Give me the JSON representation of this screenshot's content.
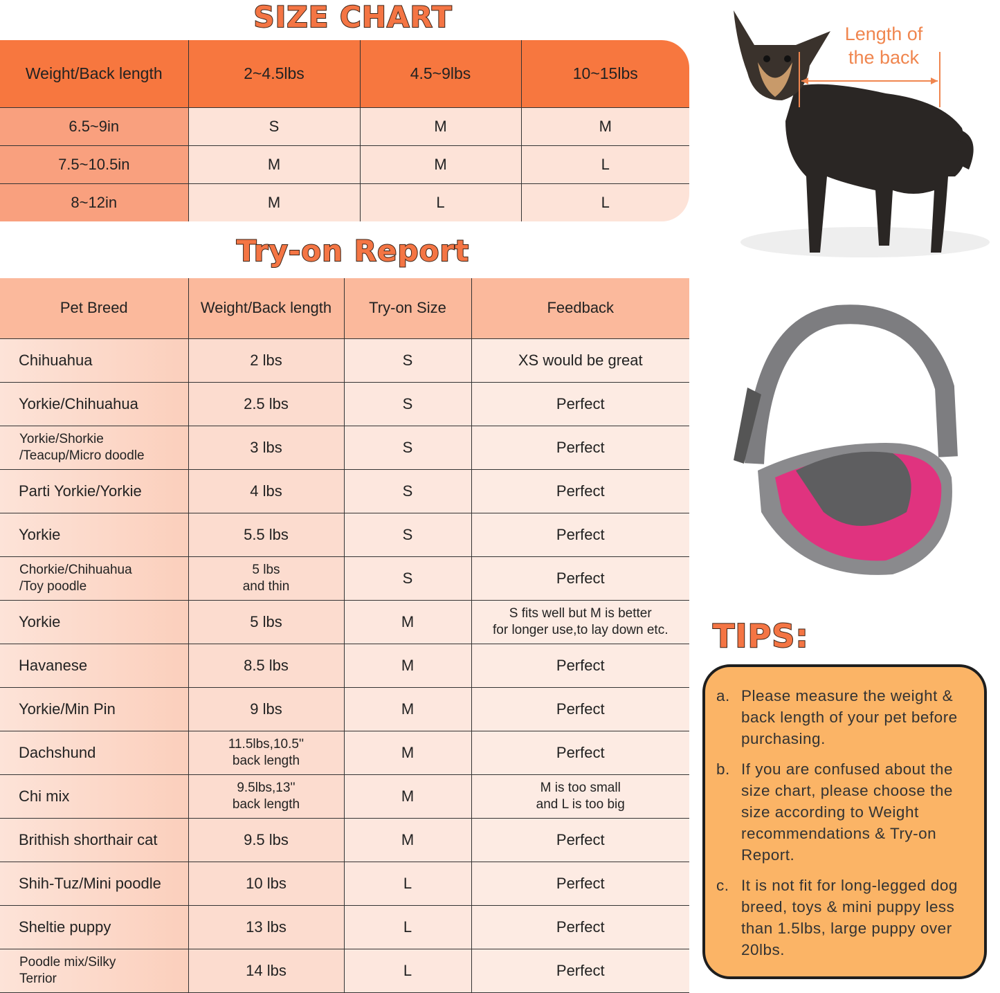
{
  "size_chart": {
    "title": "SIZE CHART",
    "headers": [
      "Weight/Back length",
      "2~4.5lbs",
      "4.5~9lbs",
      "10~15lbs"
    ],
    "rows": [
      [
        "6.5~9in",
        "S",
        "M",
        "M"
      ],
      [
        "7.5~10.5in",
        "M",
        "M",
        "L"
      ],
      [
        "8~12in",
        "M",
        "L",
        "L"
      ]
    ]
  },
  "tryon": {
    "title": "Try-on Report",
    "headers": [
      "Pet Breed",
      "Weight/Back length",
      "Try-on Size",
      "Feedback"
    ],
    "rows": [
      [
        "Chihuahua",
        "2 lbs",
        "S",
        "XS would be great"
      ],
      [
        "Yorkie/Chihuahua",
        "2.5 lbs",
        "S",
        "Perfect"
      ],
      [
        "Yorkie/Shorkie\n/Teacup/Micro doodle",
        "3 lbs",
        "S",
        "Perfect"
      ],
      [
        "Parti Yorkie/Yorkie",
        "4 lbs",
        "S",
        "Perfect"
      ],
      [
        "Yorkie",
        "5.5 lbs",
        "S",
        "Perfect"
      ],
      [
        "Chorkie/Chihuahua\n/Toy poodle",
        "5 lbs\nand thin",
        "S",
        "Perfect"
      ],
      [
        "Yorkie",
        "5 lbs",
        "M",
        "S fits well but M is better\nfor longer use,to lay down etc."
      ],
      [
        "Havanese",
        "8.5 lbs",
        "M",
        "Perfect"
      ],
      [
        "Yorkie/Min Pin",
        "9 lbs",
        "M",
        "Perfect"
      ],
      [
        "Dachshund",
        "11.5lbs,10.5''\nback length",
        "M",
        "Perfect"
      ],
      [
        "Chi mix",
        "9.5lbs,13''\nback length",
        "M",
        "M is too small\nand L is too big"
      ],
      [
        "Brithish shorthair cat",
        "9.5 lbs",
        "M",
        "Perfect"
      ],
      [
        "Shih-Tuz/Mini poodle",
        "10 lbs",
        "L",
        "Perfect"
      ],
      [
        "Sheltie puppy",
        "13 lbs",
        "L",
        "Perfect"
      ],
      [
        "Poodle mix/Silky\n Terrior",
        "14 lbs",
        "L",
        "Perfect"
      ]
    ]
  },
  "dog_annotation": "Length of\nthe back",
  "tips": {
    "title": "TIPS:",
    "items": [
      {
        "letter": "a.",
        "text": "Please measure the weight & back length of your pet before purchasing."
      },
      {
        "letter": "b.",
        "text": "If you are confused about the size chart, please choose the size according to Weight recommendations & Try-on Report."
      },
      {
        "letter": "c.",
        "text": "It is not fit for long-legged dog breed, toys & mini puppy less than 1.5lbs, large puppy over 20lbs."
      }
    ]
  },
  "colors": {
    "header_orange": "#f7773f",
    "title_orange": "#f47544",
    "tips_bg": "#fbb466",
    "bag_pink": "#e0337f"
  }
}
